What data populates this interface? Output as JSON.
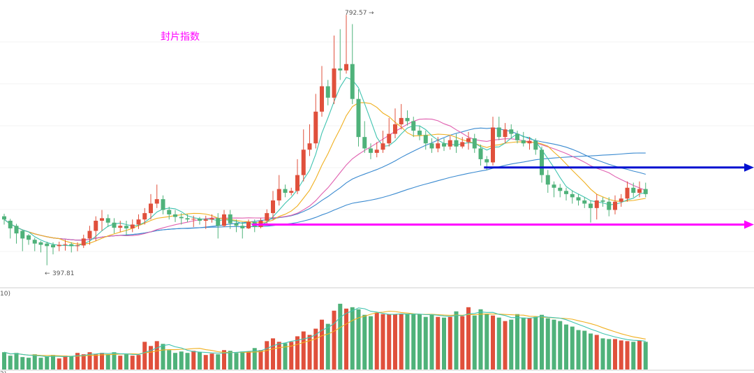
{
  "chart_data": {
    "type": "candlestick",
    "title": "封片指数",
    "title_color": "#ff00ff",
    "colors": {
      "up": "#e0503c",
      "down": "#4fb27a",
      "ma5": "#40c4b0",
      "ma10": "#f0b020",
      "ma20": "#e060b0",
      "ma60": "#3a8ad0",
      "ma120": "#3a8ad0",
      "vol_ma5": "#40c4b0",
      "vol_ma10": "#f0b020",
      "hline_magenta": "#ff00ff",
      "hline_blue": "#0010d0"
    },
    "annotations": {
      "max_label": "792.57",
      "min_label": "397.81",
      "volume_panel_label": "10)",
      "volume_panel_label_bottom": "2)"
    },
    "price_range": [
      370,
      805
    ],
    "volume_range": [
      0,
      110
    ],
    "hlines": [
      {
        "price": 462,
        "color": "#ff00ff",
        "start_index": 41
      },
      {
        "price": 552,
        "color": "#0010d0",
        "start_index": 79
      }
    ],
    "candles": [
      [
        475,
        470,
        479,
        462,
        25
      ],
      [
        468,
        456,
        471,
        440,
        20
      ],
      [
        460,
        448,
        463,
        432,
        24
      ],
      [
        452,
        440,
        454,
        420,
        18
      ],
      [
        445,
        438,
        447,
        430,
        17
      ],
      [
        438,
        432,
        441,
        420,
        22
      ],
      [
        434,
        430,
        436,
        418,
        17
      ],
      [
        432,
        428,
        435,
        397.81,
        19
      ],
      [
        430,
        426,
        434,
        415,
        21
      ],
      [
        428,
        430,
        435,
        420,
        16
      ],
      [
        430,
        431,
        438,
        421,
        20
      ],
      [
        431,
        428,
        434,
        418,
        19
      ],
      [
        428,
        429,
        434,
        420,
        24
      ],
      [
        429,
        440,
        446,
        425,
        22
      ],
      [
        440,
        452,
        460,
        430,
        25
      ],
      [
        452,
        468,
        475,
        436,
        22
      ],
      [
        468,
        472,
        485,
        452,
        24
      ],
      [
        472,
        465,
        478,
        458,
        22
      ],
      [
        465,
        457,
        472,
        448,
        25
      ],
      [
        457,
        460,
        468,
        450,
        20
      ],
      [
        460,
        456,
        468,
        445,
        22
      ],
      [
        456,
        462,
        470,
        450,
        20
      ],
      [
        462,
        470,
        478,
        455,
        21
      ],
      [
        470,
        480,
        488,
        462,
        40
      ],
      [
        480,
        495,
        510,
        470,
        34
      ],
      [
        495,
        502,
        525,
        488,
        41
      ],
      [
        502,
        485,
        508,
        478,
        37
      ],
      [
        485,
        478,
        490,
        470,
        28
      ],
      [
        478,
        474,
        485,
        466,
        24
      ],
      [
        474,
        472,
        480,
        462,
        26
      ],
      [
        472,
        470,
        478,
        466,
        24
      ],
      [
        470,
        471,
        476,
        458,
        27
      ],
      [
        471,
        468,
        474,
        462,
        25
      ],
      [
        468,
        470,
        476,
        455,
        21
      ],
      [
        470,
        472,
        478,
        465,
        23
      ],
      [
        472,
        460,
        480,
        440,
        22
      ],
      [
        460,
        478,
        485,
        458,
        28
      ],
      [
        478,
        464,
        485,
        455,
        27
      ],
      [
        464,
        460,
        470,
        450,
        24
      ],
      [
        460,
        456,
        466,
        440,
        26
      ],
      [
        456,
        466,
        470,
        455,
        26
      ],
      [
        466,
        458,
        470,
        450,
        31
      ],
      [
        458,
        468,
        472,
        456,
        28
      ],
      [
        468,
        480,
        486,
        462,
        41
      ],
      [
        480,
        500,
        515,
        470,
        45
      ],
      [
        500,
        518,
        540,
        492,
        40
      ],
      [
        518,
        512,
        525,
        505,
        38
      ],
      [
        512,
        515,
        520,
        508,
        40
      ],
      [
        515,
        540,
        565,
        510,
        48
      ],
      [
        540,
        580,
        612,
        530,
        55
      ],
      [
        580,
        590,
        620,
        570,
        50
      ],
      [
        590,
        640,
        668,
        582,
        59
      ],
      [
        640,
        680,
        712,
        632,
        72
      ],
      [
        680,
        662,
        690,
        650,
        66
      ],
      [
        662,
        708,
        760,
        652,
        85
      ],
      [
        708,
        705,
        770,
        690,
        95
      ],
      [
        705,
        715,
        792.57,
        700,
        88
      ],
      [
        715,
        660,
        778,
        652,
        90
      ],
      [
        660,
        600,
        675,
        585,
        87
      ],
      [
        600,
        582,
        625,
        575,
        79
      ],
      [
        582,
        575,
        590,
        565,
        77
      ],
      [
        575,
        580,
        592,
        568,
        82
      ],
      [
        580,
        590,
        610,
        575,
        80
      ],
      [
        590,
        605,
        630,
        585,
        80
      ],
      [
        605,
        620,
        645,
        598,
        80
      ],
      [
        620,
        630,
        652,
        612,
        80
      ],
      [
        630,
        625,
        642,
        618,
        80
      ],
      [
        625,
        610,
        632,
        600,
        80
      ],
      [
        610,
        603,
        618,
        595,
        80
      ],
      [
        603,
        590,
        610,
        580,
        76
      ],
      [
        590,
        582,
        598,
        575,
        80
      ],
      [
        582,
        590,
        600,
        576,
        76
      ],
      [
        590,
        585,
        598,
        578,
        75
      ],
      [
        585,
        595,
        602,
        580,
        76
      ],
      [
        595,
        585,
        605,
        575,
        84
      ],
      [
        585,
        592,
        600,
        582,
        77
      ],
      [
        592,
        598,
        608,
        580,
        90
      ],
      [
        598,
        582,
        605,
        575,
        78
      ],
      [
        582,
        565,
        588,
        555,
        87
      ],
      [
        565,
        560,
        570,
        548,
        80
      ],
      [
        560,
        615,
        632,
        555,
        78
      ],
      [
        615,
        600,
        632,
        595,
        75
      ],
      [
        600,
        612,
        622,
        590,
        70
      ],
      [
        612,
        605,
        620,
        598,
        72
      ],
      [
        605,
        595,
        610,
        590,
        80
      ],
      [
        595,
        590,
        608,
        585,
        75
      ],
      [
        590,
        594,
        600,
        580,
        74
      ],
      [
        594,
        580,
        598,
        572,
        76
      ],
      [
        580,
        540,
        585,
        528,
        79
      ],
      [
        540,
        525,
        548,
        512,
        74
      ],
      [
        525,
        520,
        530,
        505,
        72
      ],
      [
        520,
        515,
        526,
        505,
        70
      ],
      [
        515,
        510,
        520,
        500,
        65
      ],
      [
        510,
        505,
        516,
        495,
        62
      ],
      [
        505,
        500,
        510,
        492,
        57
      ],
      [
        500,
        495,
        505,
        488,
        56
      ],
      [
        495,
        488,
        500,
        465,
        52
      ],
      [
        488,
        500,
        510,
        470,
        50
      ],
      [
        500,
        498,
        505,
        490,
        45
      ],
      [
        498,
        485,
        505,
        475,
        44
      ],
      [
        485,
        498,
        508,
        478,
        44
      ],
      [
        498,
        503,
        510,
        490,
        42
      ],
      [
        503,
        520,
        530,
        498,
        41
      ],
      [
        520,
        512,
        528,
        505,
        40
      ],
      [
        512,
        518,
        530,
        505,
        42
      ],
      [
        518,
        510,
        528,
        505,
        40
      ]
    ]
  }
}
